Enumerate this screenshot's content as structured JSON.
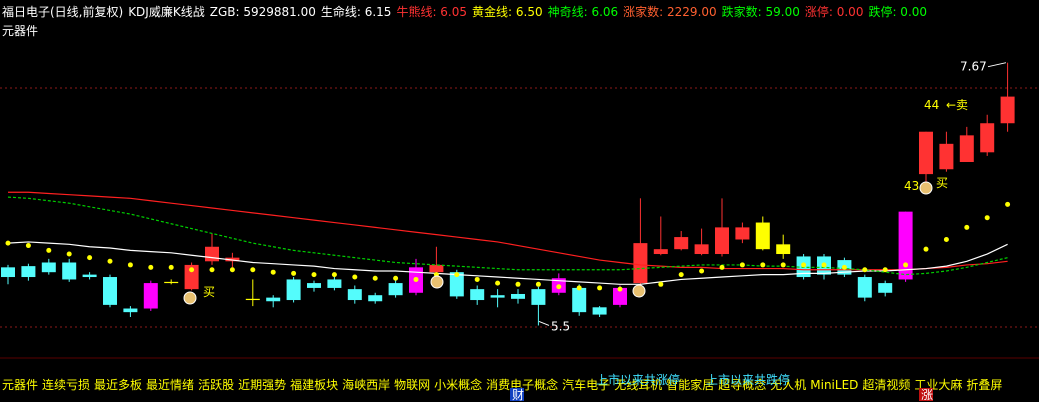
{
  "chart_data": {
    "type": "candlestick",
    "header": [
      {
        "text": "福日电子(日线,前复权)",
        "color": "#ffffff"
      },
      {
        "text": "KDJ威廉K线战",
        "color": "#ffffff"
      },
      {
        "text": "ZGB: 5929881.00",
        "color": "#ffffff"
      },
      {
        "text": "生命线: 6.15",
        "color": "#ffffff"
      },
      {
        "text": "牛熊线: 6.05",
        "color": "#ff3232"
      },
      {
        "text": "黄金线: 6.50",
        "color": "#ffff00"
      },
      {
        "text": "神奇线: 6.06",
        "color": "#00ff00"
      },
      {
        "text": "涨家数: 2229.00",
        "color": "#ff6030"
      },
      {
        "text": "跌家数: 59.00",
        "color": "#00ff00"
      },
      {
        "text": "涨停: 0.00",
        "color": "#ff3232"
      },
      {
        "text": "跌停: 0.00",
        "color": "#00ff00"
      }
    ],
    "subtitle": "元器件",
    "ylim": [
      5.38,
      7.94
    ],
    "open": [
      5.98,
      5.99,
      6.02,
      6.02,
      5.92,
      5.9,
      5.64,
      5.64,
      5.85,
      5.8,
      6.03,
      6.03,
      5.71,
      5.73,
      5.88,
      5.85,
      5.88,
      5.8,
      5.75,
      5.85,
      5.77,
      5.94,
      5.94,
      5.8,
      5.75,
      5.76,
      5.8,
      5.77,
      5.81,
      5.65,
      5.67,
      5.85,
      6.09,
      6.13,
      6.09,
      6.09,
      6.21,
      6.13,
      6.17,
      6.07,
      6.07,
      6.04,
      5.9,
      5.85,
      5.88,
      6.75,
      6.79,
      6.85,
      6.93,
      7.17
    ],
    "high": [
      6.0,
      6.01,
      6.05,
      6.05,
      5.94,
      5.92,
      5.66,
      5.87,
      5.88,
      6.02,
      6.26,
      6.1,
      5.88,
      5.75,
      5.9,
      5.87,
      5.92,
      5.83,
      5.77,
      5.88,
      6.05,
      6.15,
      5.96,
      5.83,
      5.8,
      5.8,
      5.82,
      5.93,
      5.84,
      5.66,
      5.83,
      6.55,
      6.4,
      6.28,
      6.3,
      6.55,
      6.35,
      6.4,
      6.25,
      6.09,
      6.09,
      6.06,
      5.92,
      5.87,
      6.44,
      7.1,
      7.1,
      7.14,
      7.24,
      7.67
    ],
    "low": [
      5.84,
      5.87,
      5.92,
      5.86,
      5.88,
      5.65,
      5.57,
      5.62,
      5.84,
      5.79,
      6.0,
      5.98,
      5.66,
      5.65,
      5.69,
      5.78,
      5.79,
      5.68,
      5.68,
      5.73,
      5.75,
      5.9,
      5.72,
      5.67,
      5.65,
      5.68,
      5.5,
      5.75,
      5.58,
      5.57,
      5.65,
      5.8,
      6.08,
      6.12,
      6.08,
      6.07,
      6.18,
      6.12,
      6.05,
      5.88,
      5.88,
      5.9,
      5.7,
      5.74,
      5.86,
      6.65,
      6.77,
      6.85,
      6.9,
      7.1
    ],
    "close": [
      5.9,
      5.9,
      5.94,
      5.88,
      5.9,
      5.67,
      5.61,
      5.85,
      5.86,
      6.0,
      6.15,
      6.06,
      5.72,
      5.7,
      5.71,
      5.81,
      5.81,
      5.71,
      5.7,
      5.75,
      5.98,
      6.0,
      5.74,
      5.71,
      5.73,
      5.72,
      5.67,
      5.89,
      5.61,
      5.59,
      5.81,
      6.18,
      6.13,
      6.23,
      6.17,
      6.31,
      6.31,
      6.35,
      6.09,
      5.9,
      5.92,
      5.92,
      5.73,
      5.77,
      6.44,
      7.1,
      7.0,
      7.07,
      7.17,
      7.39
    ],
    "colors": [
      "#54fcfc",
      "#54fcfc",
      "#54fcfc",
      "#54fcfc",
      "#54fcfc",
      "#54fcfc",
      "#54fcfc",
      "#ff00ff",
      "#ffff00",
      "#ff3232",
      "#ff3232",
      "#ff3232",
      "#ffff00",
      "#54fcfc",
      "#54fcfc",
      "#54fcfc",
      "#54fcfc",
      "#54fcfc",
      "#54fcfc",
      "#54fcfc",
      "#ff00ff",
      "#ff3232",
      "#54fcfc",
      "#54fcfc",
      "#54fcfc",
      "#54fcfc",
      "#54fcfc",
      "#ff00ff",
      "#54fcfc",
      "#54fcfc",
      "#ff00ff",
      "#ff3232",
      "#ff3232",
      "#ff3232",
      "#ff3232",
      "#ff3232",
      "#ff3232",
      "#ffff00",
      "#ffff00",
      "#54fcfc",
      "#54fcfc",
      "#54fcfc",
      "#54fcfc",
      "#54fcfc",
      "#ff00ff",
      "#ff3232",
      "#ff3232",
      "#ff3232",
      "#ff3232",
      "#ff3232"
    ],
    "lines": [
      {
        "color": "#ff2020",
        "style": "solid",
        "values": [
          6.6,
          6.6,
          6.59,
          6.58,
          6.57,
          6.56,
          6.55,
          6.53,
          6.51,
          6.49,
          6.47,
          6.45,
          6.43,
          6.41,
          6.39,
          6.37,
          6.35,
          6.33,
          6.31,
          6.29,
          6.27,
          6.25,
          6.23,
          6.21,
          6.19,
          6.16,
          6.13,
          6.1,
          6.07,
          6.04,
          6.02,
          6.0,
          5.99,
          5.98,
          5.98,
          5.97,
          5.97,
          5.97,
          5.97,
          5.96,
          5.96,
          5.96,
          5.96,
          5.96,
          5.96,
          5.97,
          5.98,
          6.0,
          6.01,
          6.03
        ]
      },
      {
        "color": "#ffffff",
        "style": "solid",
        "values": [
          6.18,
          6.19,
          6.18,
          6.17,
          6.15,
          6.14,
          6.12,
          6.11,
          6.1,
          6.08,
          6.06,
          6.04,
          6.02,
          6.01,
          6.0,
          5.99,
          5.97,
          5.96,
          5.95,
          5.95,
          5.94,
          5.93,
          5.92,
          5.91,
          5.9,
          5.89,
          5.88,
          5.87,
          5.86,
          5.85,
          5.84,
          5.84,
          5.86,
          5.88,
          5.89,
          5.9,
          5.91,
          5.92,
          5.92,
          5.93,
          5.93,
          5.94,
          5.95,
          5.95,
          5.96,
          5.97,
          5.99,
          6.03,
          6.09,
          6.17
        ]
      },
      {
        "color": "#00d000",
        "style": "dashed",
        "values": [
          6.56,
          6.55,
          6.53,
          6.51,
          6.48,
          6.45,
          6.42,
          6.38,
          6.34,
          6.3,
          6.26,
          6.22,
          6.18,
          6.15,
          6.12,
          6.1,
          6.08,
          6.06,
          6.04,
          6.02,
          6.01,
          6.0,
          5.99,
          5.98,
          5.97,
          5.96,
          5.96,
          5.96,
          5.96,
          5.96,
          5.96,
          5.97,
          5.98,
          5.99,
          6.0,
          6.0,
          6.0,
          5.99,
          5.99,
          5.98,
          5.98,
          5.97,
          5.96,
          5.94,
          5.92,
          5.93,
          5.95,
          5.98,
          6.02,
          6.06
        ]
      },
      {
        "color": "#ffff00",
        "style": "dots",
        "values": [
          6.18,
          6.16,
          6.12,
          6.09,
          6.06,
          6.03,
          6.0,
          5.98,
          5.98,
          5.96,
          5.96,
          5.96,
          5.96,
          5.94,
          5.93,
          5.92,
          5.92,
          5.9,
          5.89,
          5.89,
          5.88,
          5.92,
          5.92,
          5.88,
          5.85,
          5.84,
          5.84,
          5.82,
          5.81,
          5.81,
          5.8,
          5.81,
          5.84,
          5.92,
          5.95,
          5.98,
          6.0,
          6.0,
          6.0,
          6.0,
          6.0,
          5.98,
          5.96,
          5.96,
          6.0,
          6.13,
          6.21,
          6.31,
          6.39,
          6.5
        ]
      }
    ],
    "high_label": 7.67,
    "low_label": 5.5,
    "annotations": [
      {
        "text": "44",
        "color": "#ffff00"
      },
      {
        "text": "←卖",
        "color": "#ffff00"
      },
      {
        "text": "43",
        "color": "#ffff00"
      },
      {
        "text": "买",
        "color": "#ffff00"
      },
      {
        "text": "买",
        "color": "#ffff00"
      }
    ],
    "tags": [
      "元器件",
      "连续亏损",
      "最近多板",
      "最近情绪",
      "活跃股",
      "近期强势",
      "福建板块",
      "海峡西岸",
      "物联网",
      "小米概念",
      "消费电子概念",
      "汽车电子",
      "无线耳机",
      "智能家居",
      "超导概念",
      "无人机",
      "MiniLED",
      "超清视频",
      "工业大麻",
      "折叠屏"
    ],
    "overlays": [
      {
        "text": "上市以来共涨停",
        "color": "#40e0ff"
      },
      {
        "text": "上市以来共跌停",
        "color": "#40e0ff"
      },
      {
        "text": "财",
        "color": "#ffffff"
      },
      {
        "text": "涨",
        "color": "#ffffff"
      }
    ]
  }
}
